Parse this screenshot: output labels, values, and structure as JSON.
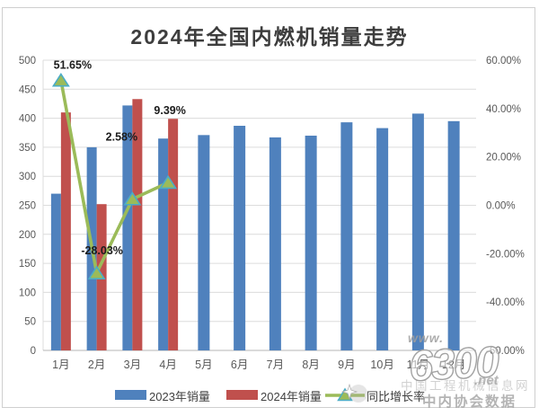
{
  "title": "2024年全国内燃机销量走势",
  "chart_data": {
    "type": "bar",
    "subtype": "grouped-bars-with-secondary-line",
    "title": "2024年全国内燃机销量走势",
    "categories": [
      "1月",
      "2月",
      "3月",
      "4月",
      "5月",
      "6月",
      "7月",
      "8月",
      "9月",
      "10月",
      "11月",
      "12月"
    ],
    "series": [
      {
        "name": "2023年销量",
        "type": "bar",
        "color": "#4F81BD",
        "values": [
          270,
          350,
          422,
          365,
          371,
          387,
          367,
          370,
          393,
          383,
          408,
          395
        ]
      },
      {
        "name": "2024年销量",
        "type": "bar",
        "color": "#C0504D",
        "values": [
          410,
          252,
          433,
          399,
          null,
          null,
          null,
          null,
          null,
          null,
          null,
          null
        ]
      },
      {
        "name": "同比增长率",
        "type": "line",
        "axis": "secondary",
        "color": "#9BBB59",
        "marker": "triangle",
        "marker_stroke": "#4BACC6",
        "values": [
          51.65,
          -28.03,
          2.58,
          9.39,
          null,
          null,
          null,
          null,
          null,
          null,
          null,
          null
        ],
        "point_labels": [
          "51.65%",
          "-28.03%",
          "2.58%",
          "9.39%"
        ]
      }
    ],
    "left_axis": {
      "min": 0,
      "max": 500,
      "step": 50,
      "tick_labels": [
        "500",
        "450",
        "400",
        "350",
        "300",
        "250",
        "200",
        "150",
        "100",
        "50",
        "0"
      ]
    },
    "right_axis": {
      "min": -60,
      "max": 60,
      "step": 20,
      "tick_labels": [
        "60.00%",
        "40.00%",
        "20.00%",
        "0.00%",
        "-20.00%",
        "-40.00%",
        "-60.00%"
      ]
    },
    "grid": true,
    "legend_position": "bottom"
  },
  "legend": {
    "items": [
      "2023年销量",
      "2024年销量",
      "同比增长率"
    ]
  },
  "watermark": {
    "www": "www.",
    "logo": "6300",
    "net": ".net",
    "site_name": "中国工程机械信息网",
    "assoc_text": "中内协会数据"
  }
}
